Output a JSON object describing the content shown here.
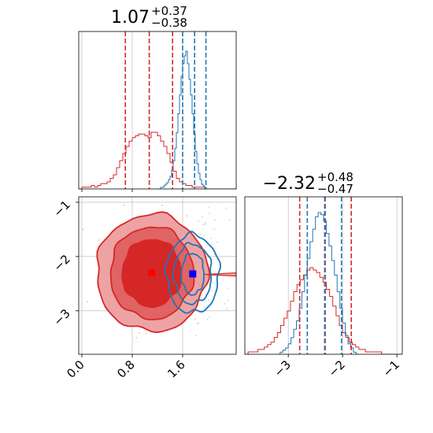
{
  "colors": {
    "red": "#d62728",
    "blue": "#1f77b4",
    "red_fill_outer": "#eda3a3",
    "red_fill_mid": "#e06464",
    "red_fill_inner": "#d62728",
    "grid": "#b0b0b0"
  },
  "chart_data": [
    {
      "type": "histogram",
      "panel": "top-left",
      "title": {
        "value": "1.07",
        "plus": "+0.37",
        "minus": "−0.38"
      },
      "x_range": [
        -0.05,
        2.45
      ],
      "red_quantiles": [
        0.69,
        1.07,
        1.44
      ],
      "blue_quantiles": [
        1.6,
        1.79,
        1.97
      ],
      "red_hist": {
        "bin_start": -0.05,
        "bin_width": 0.05,
        "values": [
          0,
          1,
          1,
          1,
          2,
          1,
          2,
          3,
          3,
          4,
          6,
          8,
          12,
          16,
          20,
          24,
          27,
          29,
          30,
          31,
          31,
          30,
          29,
          32,
          32,
          30,
          27,
          24,
          20,
          15,
          10,
          6,
          4,
          3,
          2,
          2,
          1,
          1,
          1,
          1,
          0,
          0,
          0,
          0,
          0,
          0,
          0,
          0,
          0,
          0
        ]
      },
      "blue_hist": {
        "bin_start": 1.2,
        "bin_width": 0.025,
        "values": [
          0,
          0,
          1,
          1,
          2,
          3,
          4,
          6,
          8,
          12,
          18,
          26,
          36,
          48,
          60,
          72,
          80,
          85,
          88,
          80,
          70,
          60,
          48,
          35,
          24,
          16,
          10,
          6,
          3,
          2,
          1,
          0
        ]
      }
    },
    {
      "type": "contour",
      "panel": "bottom-left",
      "x_range": [
        -0.05,
        2.45
      ],
      "y_range": [
        -3.8,
        -0.9
      ],
      "x_ticks": [
        0.0,
        0.8,
        1.6
      ],
      "x_tick_labels": [
        "0.0",
        "0.8",
        "1.6"
      ],
      "y_ticks": [
        -1,
        -2,
        -3
      ],
      "y_tick_labels": [
        "−1",
        "−2",
        "−3"
      ],
      "red_center": [
        1.11,
        -2.3
      ],
      "blue_center": [
        1.76,
        -2.32
      ],
      "red_levels": [
        {
          "rx": 0.47,
          "ry": 0.62,
          "shade": "inner"
        },
        {
          "rx": 0.66,
          "ry": 0.85,
          "shade": "mid"
        },
        {
          "rx": 0.88,
          "ry": 1.08,
          "shade": "outer"
        }
      ],
      "blue_levels": [
        {
          "rx": 0.18,
          "ry": 0.38
        },
        {
          "rx": 0.3,
          "ry": 0.55
        },
        {
          "rx": 0.42,
          "ry": 0.72
        }
      ]
    },
    {
      "type": "histogram",
      "panel": "bottom-right",
      "title": {
        "value": "−2.32",
        "plus": "+0.48",
        "minus": "−0.47"
      },
      "x_range": [
        -3.8,
        -0.9
      ],
      "x_ticks": [
        -3,
        -2,
        -1
      ],
      "x_tick_labels": [
        "−3",
        "−2",
        "−1"
      ],
      "red_quantiles": [
        -2.79,
        -2.32,
        -1.84
      ],
      "blue_quantiles": [
        -2.65,
        -2.33,
        -2.02
      ],
      "red_hist": {
        "bin_start": -3.8,
        "bin_width": 0.06,
        "values": [
          0,
          1,
          1,
          1,
          2,
          2,
          3,
          4,
          5,
          7,
          9,
          12,
          15,
          18,
          22,
          26,
          29,
          31,
          33,
          35,
          36,
          35,
          34,
          32,
          30,
          27,
          24,
          20,
          16,
          12,
          9,
          7,
          5,
          4,
          3,
          2,
          2,
          1,
          1,
          1,
          1,
          1,
          0,
          0,
          0,
          0,
          0,
          0
        ]
      },
      "blue_hist": {
        "bin_start": -3.2,
        "bin_width": 0.05,
        "values": [
          0,
          1,
          2,
          3,
          5,
          8,
          12,
          16,
          22,
          30,
          38,
          46,
          54,
          60,
          66,
          68,
          67,
          64,
          58,
          52,
          45,
          38,
          30,
          22,
          15,
          9,
          5,
          3,
          1,
          0
        ]
      }
    }
  ]
}
